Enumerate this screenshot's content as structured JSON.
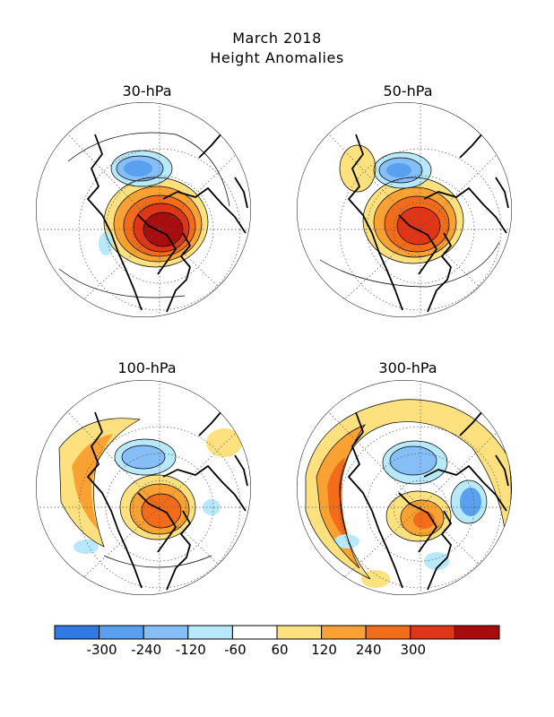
{
  "title": {
    "line1": "March 2018",
    "line2": "Height Anomalies"
  },
  "panels": [
    {
      "label": "30-hPa"
    },
    {
      "label": "50-hPa"
    },
    {
      "label": "100-hPa"
    },
    {
      "label": "300-hPa"
    }
  ],
  "legend": {
    "colors": [
      "#2f7ae5",
      "#5aa0f0",
      "#86bff8",
      "#b7e9fb",
      "#ffffff",
      "#fde17f",
      "#f9a233",
      "#f26c19",
      "#e03516",
      "#a80c0c"
    ],
    "ticks": [
      "-300",
      "-240",
      "-120",
      "-60",
      "60",
      "120",
      "240",
      "300"
    ]
  },
  "colors": {
    "land_outline": "#000000",
    "grid": "#555555"
  }
}
